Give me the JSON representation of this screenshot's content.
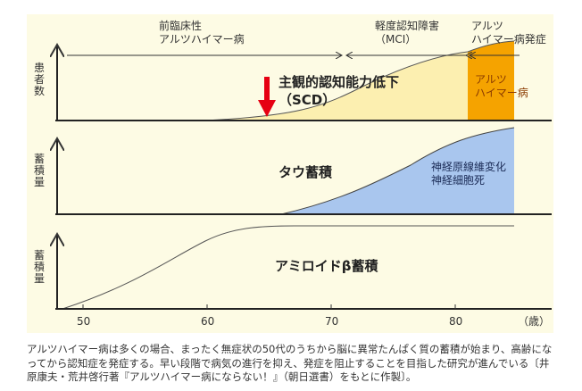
{
  "labels": {
    "preclinical": [
      "前臨床性",
      "アルツハイマー病"
    ],
    "mci": [
      "軽度認知障害",
      "（MCI）"
    ],
    "onset": [
      "アルツ",
      "ハイマー病発症"
    ],
    "ad_box": [
      "アルツ",
      "ハイマー病"
    ],
    "scd": [
      "主観的認知能力低下",
      "（SCD）"
    ],
    "tau": "タウ蓄積",
    "neuro": [
      "神経原線維変化",
      "神経細胞死"
    ],
    "amyloid": "アミロイドβ蓄積",
    "y1": "患者数",
    "y2": "蓄積量",
    "y3": "蓄積量"
  },
  "chart_data": {
    "type": "area",
    "xlabel": "（歳）",
    "x_ticks": [
      "50",
      "60",
      "70",
      "80"
    ],
    "xlim": [
      48,
      86
    ],
    "panels": [
      "患者数",
      "タウ蓄積",
      "アミロイドβ蓄積"
    ]
  },
  "colors": {
    "bg": "#fdfbe4",
    "mci_fill": "#fcefb0",
    "ad_fill": "#f5a300",
    "tau_fill": "#a9c6ee",
    "arrow_red": "#e60012"
  },
  "caption": "アルツハイマー病は多くの場合、まったく無症状の50代のうちから脳に異常たんぱく質の蓄積が始まり、高齢になってから認知症を発症する。早い段階で病気の進行を抑え、発症を阻止することを目指した研究が進んでいる〔井原康夫・荒井啓行著『アルツハイマー病にならない！』（朝日選書）をもとに作製〕。"
}
